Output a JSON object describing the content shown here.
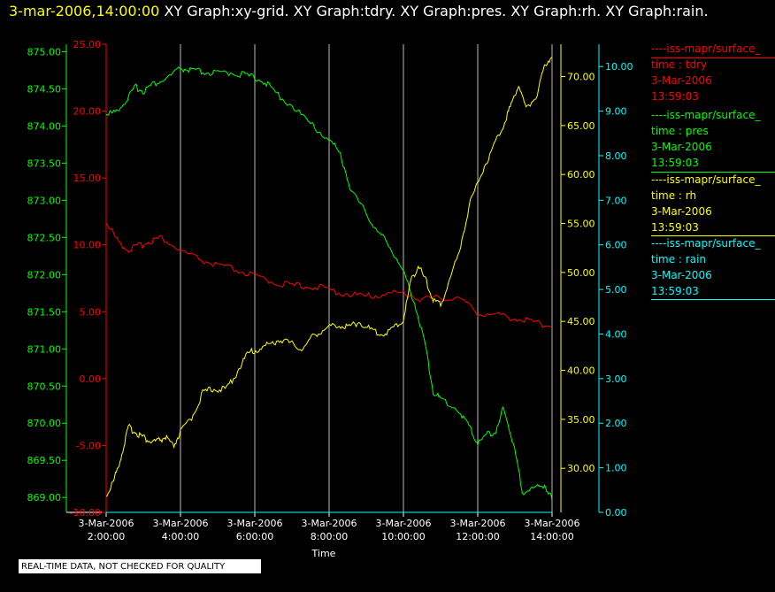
{
  "header": {
    "timestamp": "3-mar-2006,14:00:00",
    "graphs": "XY Graph:xy-grid.  XY Graph:tdry.  XY Graph:pres.  XY Graph:rh.  XY Graph:rain."
  },
  "footer": {
    "quality_note": "REAL-TIME DATA, NOT CHECKED FOR QUALITY"
  },
  "colors": {
    "tdry": "#ff0000",
    "pres": "#00ff00",
    "rh": "#ffff00",
    "rain": "#00ffff",
    "grid": "#bbbbbb"
  },
  "legend": [
    {
      "source": "----iss-mapr/surface_",
      "var": "time : tdry",
      "date": "3-Mar-2006",
      "time": "13:59:03"
    },
    {
      "source": "----iss-mapr/surface_",
      "var": "time : pres",
      "date": "3-Mar-2006",
      "time": "13:59:03"
    },
    {
      "source": "----iss-mapr/surface_",
      "var": "time : rh",
      "date": "3-Mar-2006",
      "time": "13:59:03"
    },
    {
      "source": "----iss-mapr/surface_",
      "var": "time : rain",
      "date": "3-Mar-2006",
      "time": "13:59:03"
    }
  ],
  "chart_data": {
    "type": "line",
    "xlabel": "Time",
    "x_range_hours": [
      2.0,
      14.0
    ],
    "x_ticks": [
      {
        "hour": 2,
        "date": "3-Mar-2006",
        "time": "2:00:00"
      },
      {
        "hour": 4,
        "date": "3-Mar-2006",
        "time": "4:00:00"
      },
      {
        "hour": 6,
        "date": "3-Mar-2006",
        "time": "6:00:00"
      },
      {
        "hour": 8,
        "date": "3-Mar-2006",
        "time": "8:00:00"
      },
      {
        "hour": 10,
        "date": "3-Mar-2006",
        "time": "10:00:00"
      },
      {
        "hour": 12,
        "date": "3-Mar-2006",
        "time": "12:00:00"
      },
      {
        "hour": 14,
        "date": "3-Mar-2006",
        "time": "14:00:00"
      }
    ],
    "axes": {
      "pres": {
        "side": "left-outer",
        "ylim": [
          868.8,
          875.1
        ],
        "ticks": [
          "869.00",
          "869.50",
          "870.00",
          "870.50",
          "871.00",
          "871.50",
          "872.00",
          "872.50",
          "873.00",
          "873.50",
          "874.00",
          "874.50",
          "875.00"
        ]
      },
      "tdry": {
        "side": "left-inner",
        "ylim": [
          -10,
          25
        ],
        "ticks": [
          "-10.00",
          "-5.00",
          "0.00",
          "5.00",
          "10.00",
          "15.00",
          "20.00",
          "25.00"
        ]
      },
      "rh": {
        "side": "right-inner",
        "ylim": [
          25.5,
          73.3
        ],
        "ticks": [
          "30.00",
          "35.00",
          "40.00",
          "45.00",
          "50.00",
          "55.00",
          "60.00",
          "65.00",
          "70.00"
        ]
      },
      "rain": {
        "side": "right-outer",
        "ylim": [
          0,
          10.5
        ],
        "ticks": [
          "0.00",
          "1.00",
          "2.00",
          "3.00",
          "4.00",
          "5.00",
          "6.00",
          "7.00",
          "8.00",
          "9.00",
          "10.00"
        ]
      }
    },
    "series": [
      {
        "key": "tdry",
        "x": [
          2.0,
          2.3,
          2.6,
          2.9,
          3.2,
          3.5,
          4.0,
          4.5,
          5.0,
          5.5,
          6.0,
          6.5,
          7.0,
          7.5,
          8.0,
          8.5,
          9.0,
          9.5,
          10.0,
          10.5,
          11.0,
          11.5,
          12.0,
          12.5,
          13.0,
          13.5,
          14.0
        ],
        "y": [
          11.6,
          10.2,
          9.5,
          9.8,
          10.2,
          10.4,
          9.4,
          8.8,
          8.3,
          8.0,
          7.5,
          7.1,
          6.8,
          6.8,
          6.5,
          6.2,
          6.0,
          6.2,
          6.3,
          5.8,
          5.9,
          5.9,
          4.8,
          4.6,
          4.4,
          4.1,
          3.8
        ]
      },
      {
        "key": "pres",
        "x": [
          2.0,
          2.2,
          2.5,
          2.8,
          3.0,
          3.3,
          3.6,
          4.0,
          4.3,
          4.6,
          5.0,
          5.4,
          5.8,
          6.2,
          6.5,
          7.0,
          7.5,
          8.0,
          8.3,
          8.6,
          9.0,
          9.3,
          9.6,
          10.0,
          10.3,
          10.6,
          10.8,
          11.0,
          11.5,
          11.8,
          12.0,
          12.3,
          12.5,
          12.7,
          13.0,
          13.2,
          13.5,
          13.8,
          14.0
        ],
        "y": [
          874.15,
          874.15,
          874.3,
          874.5,
          874.45,
          874.55,
          874.6,
          874.75,
          874.72,
          874.7,
          874.68,
          874.7,
          874.65,
          874.6,
          874.45,
          874.25,
          874.0,
          873.8,
          873.6,
          873.1,
          872.8,
          872.55,
          872.4,
          872.0,
          871.6,
          871.0,
          870.4,
          870.3,
          870.15,
          869.9,
          869.7,
          869.85,
          869.85,
          870.2,
          869.6,
          869.05,
          869.1,
          869.15,
          868.95
        ]
      },
      {
        "key": "rh",
        "x": [
          2.0,
          2.2,
          2.4,
          2.6,
          2.8,
          3.0,
          3.2,
          3.4,
          3.6,
          3.8,
          4.0,
          4.3,
          4.6,
          4.9,
          5.2,
          5.5,
          5.8,
          6.1,
          6.4,
          6.7,
          7.0,
          7.3,
          7.6,
          7.9,
          8.2,
          8.5,
          8.8,
          9.1,
          9.4,
          9.7,
          10.0,
          10.2,
          10.4,
          10.6,
          10.8,
          11.0,
          11.2,
          11.5,
          11.8,
          12.1,
          12.4,
          12.7,
          12.9,
          13.1,
          13.3,
          13.6,
          13.8,
          14.0
        ],
        "y": [
          27.0,
          28.5,
          31.0,
          34.0,
          33.5,
          33.0,
          32.5,
          32.6,
          33.0,
          32.0,
          33.5,
          35.0,
          37.5,
          38.0,
          37.8,
          39.5,
          41.5,
          42.0,
          42.5,
          43.0,
          42.5,
          42.0,
          43.5,
          44.0,
          44.5,
          44.2,
          44.8,
          44.0,
          43.5,
          44.0,
          45.0,
          49.0,
          50.5,
          49.0,
          47.0,
          46.5,
          48.5,
          52.0,
          57.0,
          60.0,
          62.5,
          65.0,
          67.0,
          69.0,
          66.5,
          68.0,
          71.0,
          72.0
        ]
      },
      {
        "key": "rain",
        "x": [
          2.0,
          14.0
        ],
        "y": [
          0.0,
          0.0
        ]
      }
    ]
  }
}
